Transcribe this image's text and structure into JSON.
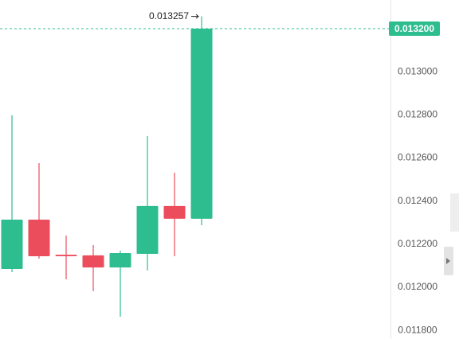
{
  "chart_data": {
    "type": "candlestick",
    "open": [
      0.012085,
      0.012314,
      0.012151,
      0.012148,
      0.012092,
      0.012155,
      0.012377,
      0.012318
    ],
    "high": [
      0.012798,
      0.012576,
      0.01224,
      0.012196,
      0.01217,
      0.012702,
      0.012532,
      0.013257
    ],
    "low": [
      0.01207,
      0.012133,
      0.012037,
      0.011982,
      0.011863,
      0.012078,
      0.012144,
      0.012288
    ],
    "close": [
      0.012314,
      0.012144,
      0.012144,
      0.012092,
      0.012159,
      0.012377,
      0.012318,
      0.0132
    ],
    "up_color": "#2ebd8f",
    "down_color": "#eb4d5c",
    "ylim": [
      0.01176,
      0.013333
    ],
    "yticks": [
      {
        "value": 0.0118,
        "label": "0.011800"
      },
      {
        "value": 0.012,
        "label": "0.012000"
      },
      {
        "value": 0.0122,
        "label": "0.012200"
      },
      {
        "value": 0.0124,
        "label": "0.012400"
      },
      {
        "value": 0.0126,
        "label": "0.012600"
      },
      {
        "value": 0.0128,
        "label": "0.012800"
      },
      {
        "value": 0.013,
        "label": "0.013000"
      }
    ],
    "last_price": {
      "value": 0.0132,
      "label": "0.013200"
    },
    "high_annotation": 0.013257
  }
}
